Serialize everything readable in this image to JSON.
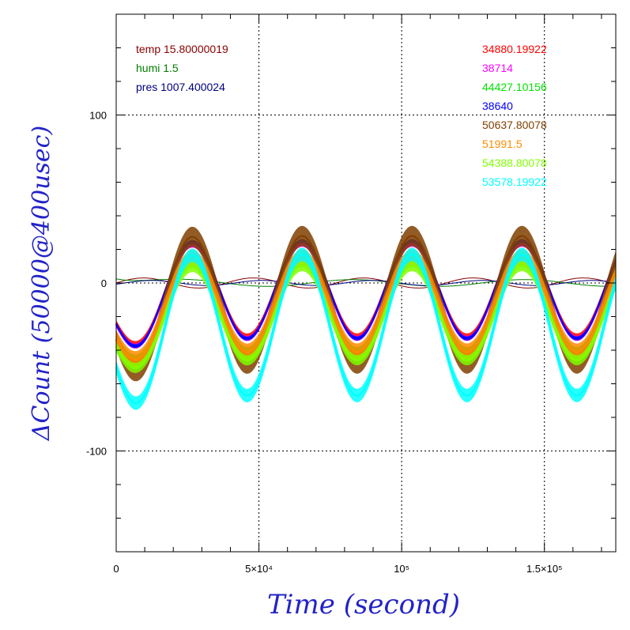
{
  "chart_data": {
    "type": "line",
    "xlabel": "Time (second)",
    "ylabel": "ΔCount (50000@400usec)",
    "xlim": [
      0,
      175000
    ],
    "ylim": [
      -160,
      160
    ],
    "grid": true,
    "x_ticks": [
      {
        "value": 0,
        "label": "0"
      },
      {
        "value": 50000,
        "label": "5×10⁴"
      },
      {
        "value": 100000,
        "label": "10⁵"
      },
      {
        "value": 150000,
        "label": "1.5×10⁵"
      }
    ],
    "y_ticks": [
      {
        "value": 100,
        "label": "100"
      },
      {
        "value": 0,
        "label": "0"
      },
      {
        "value": -100,
        "label": "-100"
      }
    ],
    "env_legend": [
      {
        "label": "temp 15.80000019",
        "color": "#8b0000"
      },
      {
        "label": "humi 1.5",
        "color": "#008000"
      },
      {
        "label": "pres 1007.400024",
        "color": "#000080"
      }
    ],
    "series": [
      {
        "name": "34880.19922",
        "color": "#ff0000",
        "amp": 28,
        "offset": -4,
        "noise": 2
      },
      {
        "name": "38714",
        "color": "#ff00ff",
        "amp": 28,
        "offset": -5,
        "noise": 1.5
      },
      {
        "name": "44427.10156",
        "color": "#00e000",
        "amp": 28,
        "offset": -12,
        "noise": 2
      },
      {
        "name": "38640",
        "color": "#0000ff",
        "amp": 29,
        "offset": -4,
        "noise": 1.2
      },
      {
        "name": "50637.80078",
        "color": "#804000",
        "amp": 38,
        "offset": -10,
        "noise": 6
      },
      {
        "name": "51991.5",
        "color": "#ff8c00",
        "amp": 28,
        "offset": -13,
        "noise": 5
      },
      {
        "name": "54388.80078",
        "color": "#80ff00",
        "amp": 28,
        "offset": -18,
        "noise": 3
      },
      {
        "name": "53578.19922",
        "color": "#00ffff",
        "amp": 42,
        "offset": -25,
        "noise": 4
      }
    ]
  }
}
